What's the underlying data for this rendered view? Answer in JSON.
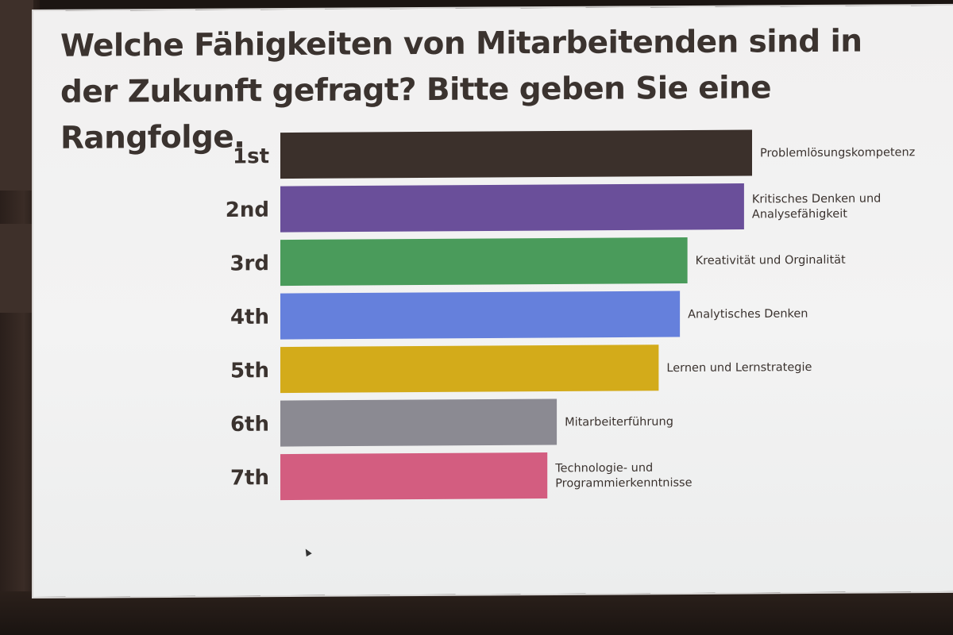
{
  "slide": {
    "title": "Welche Fähigkeiten von Mitarbeitenden sind in der Zukunft gefragt? Bitte geben Sie eine Rangfolge."
  },
  "chart_data": {
    "type": "bar",
    "orientation": "horizontal",
    "title": "Welche Fähigkeiten von Mitarbeitenden sind in der Zukunft gefragt? Bitte geben Sie eine Rangfolge.",
    "ranks": [
      "1st",
      "2nd",
      "3rd",
      "4th",
      "5th",
      "6th",
      "7th"
    ],
    "categories": [
      [
        "Problemlösungskompetenz"
      ],
      [
        "Kritisches Denken und",
        "Analysefähigkeit"
      ],
      [
        "Kreativität und Orginalität"
      ],
      [
        "Analytisches Denken"
      ],
      [
        "Lernen und Lernstrategie"
      ],
      [
        "Mitarbeiterführung"
      ],
      [
        "Technologie- und",
        "Programmierkenntnisse"
      ]
    ],
    "values": [
      100,
      98.3,
      86.3,
      84.7,
      80.2,
      58.6,
      56.6
    ],
    "value_scale": "relative score, top bar = 100",
    "colors": [
      "#3b302b",
      "#6a4f9a",
      "#4a9b5b",
      "#6580dc",
      "#d3ab1a",
      "#8b8a92",
      "#d35d80"
    ],
    "axes_visible": false,
    "grid": false,
    "legend": "none"
  }
}
